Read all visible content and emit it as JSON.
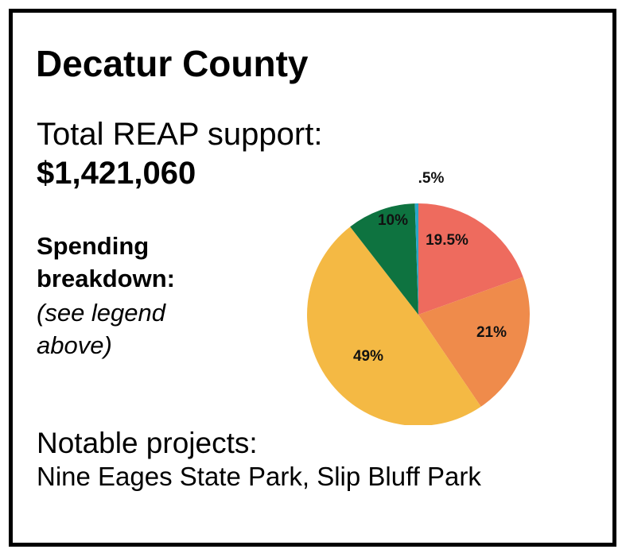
{
  "header": {
    "title": "Decatur County"
  },
  "support": {
    "label": "Total REAP support:",
    "value": "$1,421,060"
  },
  "spending": {
    "label": "Spending breakdown:",
    "note": "(see legend above)"
  },
  "projects": {
    "label": "Notable projects:",
    "value": "Nine Eages State Park, Slip Bluff Park"
  },
  "chart_data": {
    "type": "pie",
    "start_angle_deg": 0,
    "direction": "clockwise",
    "slices": [
      {
        "label": "19.5%",
        "value": 19.5,
        "color": "#ee6b5e"
      },
      {
        "label": "21%",
        "value": 21,
        "color": "#ef8b4b"
      },
      {
        "label": "49%",
        "value": 49,
        "color": "#f4b944"
      },
      {
        "label": "10%",
        "value": 10,
        "color": "#0e7340"
      },
      {
        "label": ".5%",
        "value": 0.5,
        "color": "#2aa7c9"
      }
    ]
  }
}
